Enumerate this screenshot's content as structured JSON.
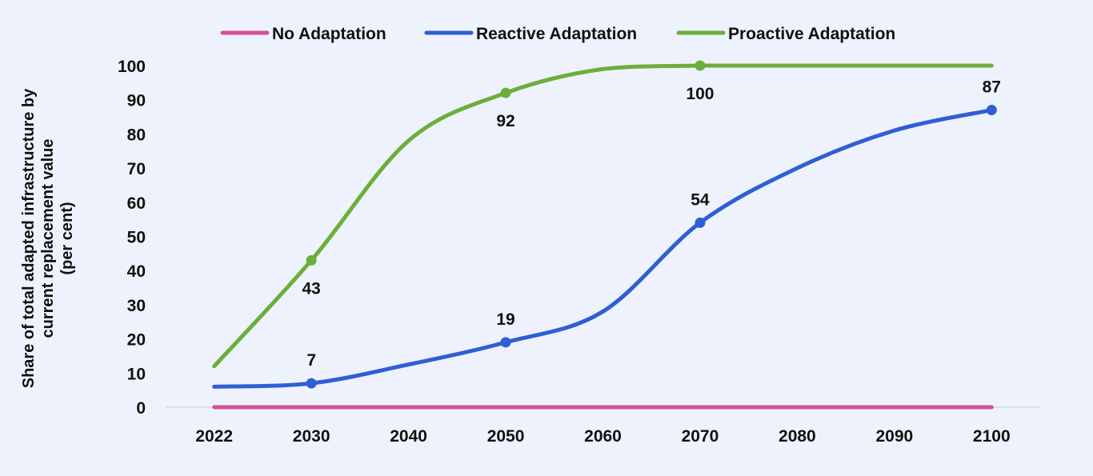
{
  "chart_data": {
    "type": "line",
    "title": "",
    "xlabel": "",
    "ylabel_lines": [
      "Share of total adapted infrastructure by",
      "current replacement value",
      "(per cent)"
    ],
    "x": [
      "2022",
      "2030",
      "2040",
      "2050",
      "2060",
      "2070",
      "2080",
      "2090",
      "2100"
    ],
    "x_values": [
      2022,
      2030,
      2040,
      2050,
      2060,
      2070,
      2080,
      2090,
      2100
    ],
    "ylim": [
      0,
      100
    ],
    "yticks": [
      0,
      10,
      20,
      30,
      40,
      50,
      60,
      70,
      80,
      90,
      100
    ],
    "grid": false,
    "legend_position": "top",
    "series": [
      {
        "name": "No Adaptation",
        "color": "#D64F97",
        "values": [
          0,
          0,
          0,
          0,
          0,
          0,
          0,
          0,
          0
        ],
        "labels": []
      },
      {
        "name": "Reactive Adaptation",
        "color": "#2F5FD3",
        "values": [
          6,
          7,
          12.5,
          19,
          28,
          54,
          70,
          81,
          87
        ],
        "markers": [
          {
            "x": 2030,
            "y": 7,
            "label": "7",
            "label_pos": "above"
          },
          {
            "x": 2050,
            "y": 19,
            "label": "19",
            "label_pos": "above"
          },
          {
            "x": 2070,
            "y": 54,
            "label": "54",
            "label_pos": "above"
          },
          {
            "x": 2100,
            "y": 87,
            "label": "87",
            "label_pos": "above"
          }
        ]
      },
      {
        "name": "Proactive Adaptation",
        "color": "#6CAE3A",
        "values": [
          12,
          43,
          78,
          92,
          99,
          100,
          100,
          100,
          100
        ],
        "markers": [
          {
            "x": 2030,
            "y": 43,
            "label": "43",
            "label_pos": "below"
          },
          {
            "x": 2050,
            "y": 92,
            "label": "92",
            "label_pos": "below"
          },
          {
            "x": 2070,
            "y": 100,
            "label": "100",
            "label_pos": "below"
          }
        ]
      }
    ]
  }
}
